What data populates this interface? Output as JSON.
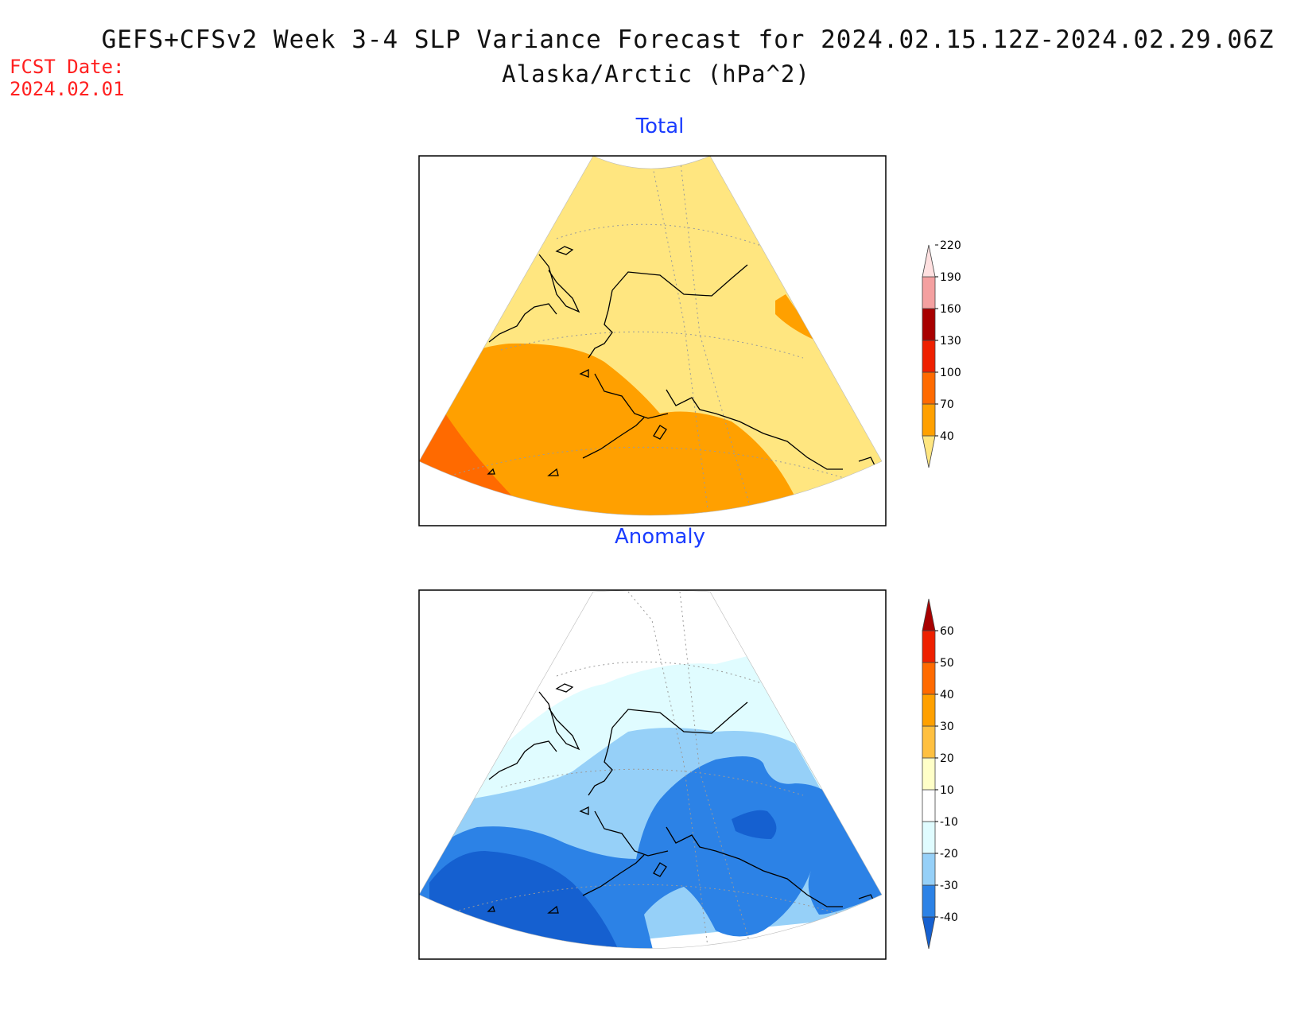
{
  "header": {
    "title": "GEFS+CFSv2 Week 3-4 SLP Variance Forecast for 2024.02.15.12Z-2024.02.29.06Z",
    "subtitle": "Alaska/Arctic (hPa^2)",
    "fcst_label": "FCST Date:",
    "fcst_date": "2024.02.01"
  },
  "panels": {
    "total": {
      "title": "Total",
      "colorbar": {
        "labels": [
          "40",
          "70",
          "100",
          "130",
          "160",
          "190",
          "220"
        ],
        "colors": [
          "#ffe680",
          "#ffa000",
          "#ff6a00",
          "#ee2000",
          "#a80000",
          "#f4a0a0",
          "#ffe0e0"
        ]
      }
    },
    "anomaly": {
      "title": "Anomaly",
      "colorbar": {
        "labels": [
          "-40",
          "-30",
          "-20",
          "-10",
          "10",
          "20",
          "30",
          "40",
          "50",
          "60"
        ],
        "colors": [
          "#1560d0",
          "#2c82e6",
          "#96d0f8",
          "#e0fcff",
          "#ffffff",
          "#ffffc8",
          "#ffc040",
          "#ffa000",
          "#ff6a00",
          "#ee2000",
          "#a80000"
        ]
      }
    }
  }
}
